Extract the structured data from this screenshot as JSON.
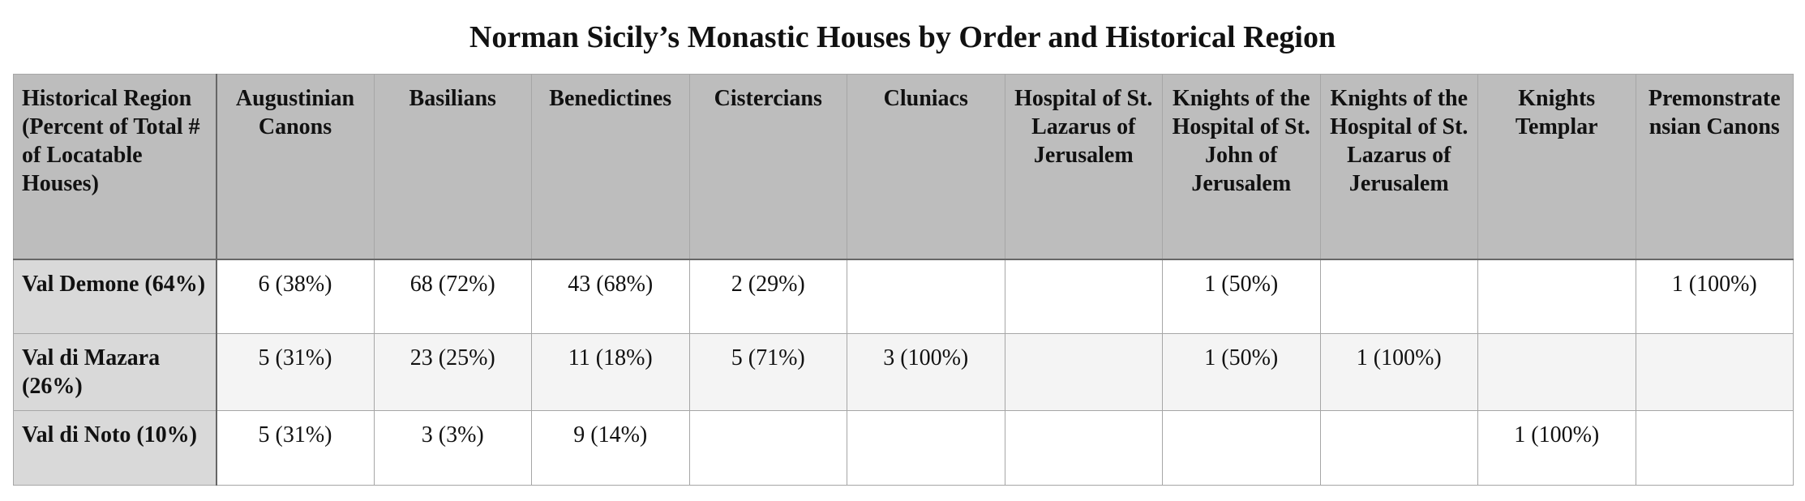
{
  "chart_data": {
    "type": "table",
    "title": "Norman Sicily’s Monastic Houses by Order and Historical Region",
    "columns": [
      "Historical Region (Percent of Total # of Locatable Houses)",
      "Augustinian Canons",
      "Basilians",
      "Benedictines",
      "Cistercians",
      "Cluniacs",
      "Hospital of St. Lazarus of Jerusalem",
      "Knights of the Hospital of St. John of Jerusalem",
      "Knights of the Hospital of St. Lazarus of Jerusalem",
      "Knights Templar",
      "Premonstratensian Canons"
    ],
    "rows": [
      {
        "region": "Val Demone (64%)",
        "cells": [
          "6 (38%)",
          "68 (72%)",
          "43 (68%)",
          "2 (29%)",
          "",
          "",
          "1 (50%)",
          "",
          "",
          "1 (100%)"
        ]
      },
      {
        "region": "Val di Mazara (26%)",
        "cells": [
          "5 (31%)",
          "23 (25%)",
          "11 (18%)",
          "5 (71%)",
          "3 (100%)",
          "",
          "1 (50%)",
          "1 (100%)",
          "",
          ""
        ]
      },
      {
        "region": "Val di Noto (10%)",
        "cells": [
          "5 (31%)",
          "3 (3%)",
          "9 (14%)",
          "",
          "",
          "",
          "",
          "",
          "1 (100%)",
          ""
        ]
      }
    ]
  }
}
